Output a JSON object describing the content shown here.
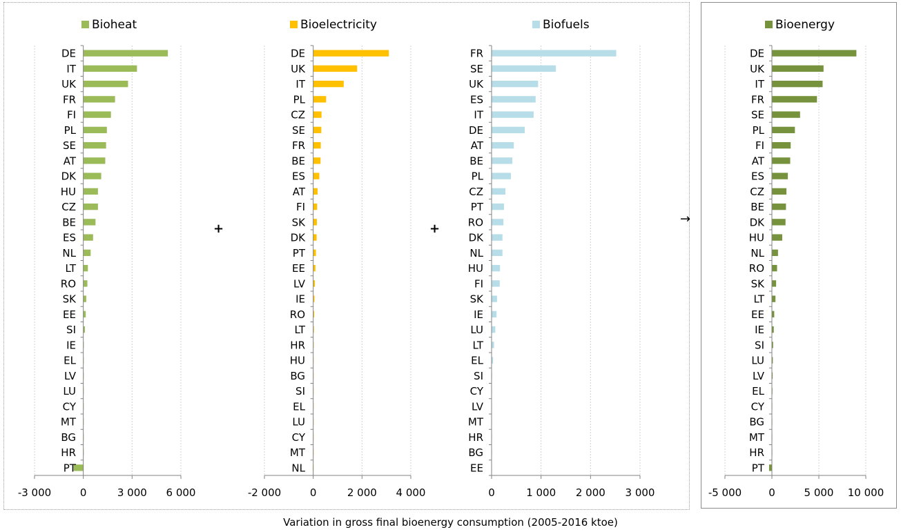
{
  "x_axis_title": "Variation in gross final bioenergy consumption (2005-2016 ktoe)",
  "operators": {
    "plus1": "+",
    "plus2": "+",
    "arrow": "→"
  },
  "chart_data": [
    {
      "type": "bar",
      "orientation": "horizontal",
      "legend": "Bioheat",
      "color": "#9bbb59",
      "categories": [
        "DE",
        "IT",
        "UK",
        "FR",
        "FI",
        "PL",
        "SE",
        "AT",
        "DK",
        "HU",
        "CZ",
        "BE",
        "ES",
        "NL",
        "LT",
        "RO",
        "SK",
        "EE",
        "SI",
        "IE",
        "EL",
        "LV",
        "LU",
        "CY",
        "MT",
        "BG",
        "HR",
        "PT"
      ],
      "values": [
        5200,
        3300,
        2750,
        1950,
        1700,
        1450,
        1400,
        1350,
        1100,
        900,
        900,
        750,
        600,
        450,
        280,
        250,
        180,
        150,
        100,
        30,
        20,
        15,
        10,
        5,
        3,
        2,
        1,
        -600
      ],
      "xlim": [
        -3000,
        6000
      ],
      "ticks": [
        -3000,
        0,
        3000,
        6000
      ],
      "tick_labels": [
        "-3 000",
        "0",
        "3 000",
        "6 000"
      ],
      "grid": true
    },
    {
      "type": "bar",
      "orientation": "horizontal",
      "legend": "Bioelectricity",
      "color": "#ffc000",
      "categories": [
        "DE",
        "UK",
        "IT",
        "PL",
        "CZ",
        "SE",
        "FR",
        "BE",
        "ES",
        "AT",
        "FI",
        "SK",
        "DK",
        "PT",
        "EE",
        "LV",
        "IE",
        "RO",
        "LT",
        "HR",
        "HU",
        "BG",
        "SI",
        "EL",
        "LU",
        "CY",
        "MT",
        "NL"
      ],
      "values": [
        3100,
        1800,
        1250,
        530,
        340,
        330,
        310,
        300,
        250,
        180,
        160,
        150,
        140,
        110,
        90,
        70,
        50,
        40,
        30,
        20,
        15,
        10,
        8,
        5,
        3,
        2,
        1,
        -20
      ],
      "xlim": [
        -2000,
        4000
      ],
      "ticks": [
        -2000,
        0,
        2000,
        4000
      ],
      "tick_labels": [
        "-2 000",
        "0",
        "2 000",
        "4 000"
      ],
      "grid": true
    },
    {
      "type": "bar",
      "orientation": "horizontal",
      "legend": "Biofuels",
      "color": "#b7dee8",
      "categories": [
        "FR",
        "SE",
        "UK",
        "ES",
        "IT",
        "DE",
        "AT",
        "BE",
        "PL",
        "CZ",
        "PT",
        "RO",
        "DK",
        "NL",
        "HU",
        "FI",
        "SK",
        "IE",
        "LU",
        "LT",
        "EL",
        "SI",
        "CY",
        "LV",
        "MT",
        "HR",
        "BG",
        "EE"
      ],
      "values": [
        2520,
        1300,
        940,
        890,
        850,
        670,
        450,
        420,
        390,
        280,
        250,
        240,
        220,
        220,
        170,
        165,
        110,
        100,
        75,
        50,
        30,
        10,
        8,
        5,
        3,
        2,
        1,
        1
      ],
      "xlim": [
        0,
        3000
      ],
      "ticks": [
        0,
        1000,
        2000,
        3000
      ],
      "tick_labels": [
        "0",
        "1 000",
        "2 000",
        "3 000"
      ],
      "grid": true
    },
    {
      "type": "bar",
      "orientation": "horizontal",
      "legend": "Bioenergy",
      "color": "#76923c",
      "categories": [
        "DE",
        "UK",
        "IT",
        "FR",
        "SE",
        "PL",
        "FI",
        "AT",
        "ES",
        "CZ",
        "BE",
        "DK",
        "HU",
        "NL",
        "RO",
        "SK",
        "LT",
        "EE",
        "IE",
        "SI",
        "LU",
        "LV",
        "EL",
        "CY",
        "BG",
        "MT",
        "HR",
        "PT"
      ],
      "values": [
        9000,
        5500,
        5400,
        4800,
        3000,
        2450,
        2000,
        1950,
        1700,
        1550,
        1500,
        1450,
        1100,
        650,
        550,
        450,
        380,
        250,
        200,
        130,
        100,
        80,
        60,
        40,
        30,
        20,
        10,
        -300
      ],
      "xlim": [
        -5000,
        10000
      ],
      "ticks": [
        -5000,
        0,
        5000,
        10000
      ],
      "tick_labels": [
        "-5 000",
        "0",
        "5 000",
        "10 000"
      ],
      "grid": true
    }
  ]
}
